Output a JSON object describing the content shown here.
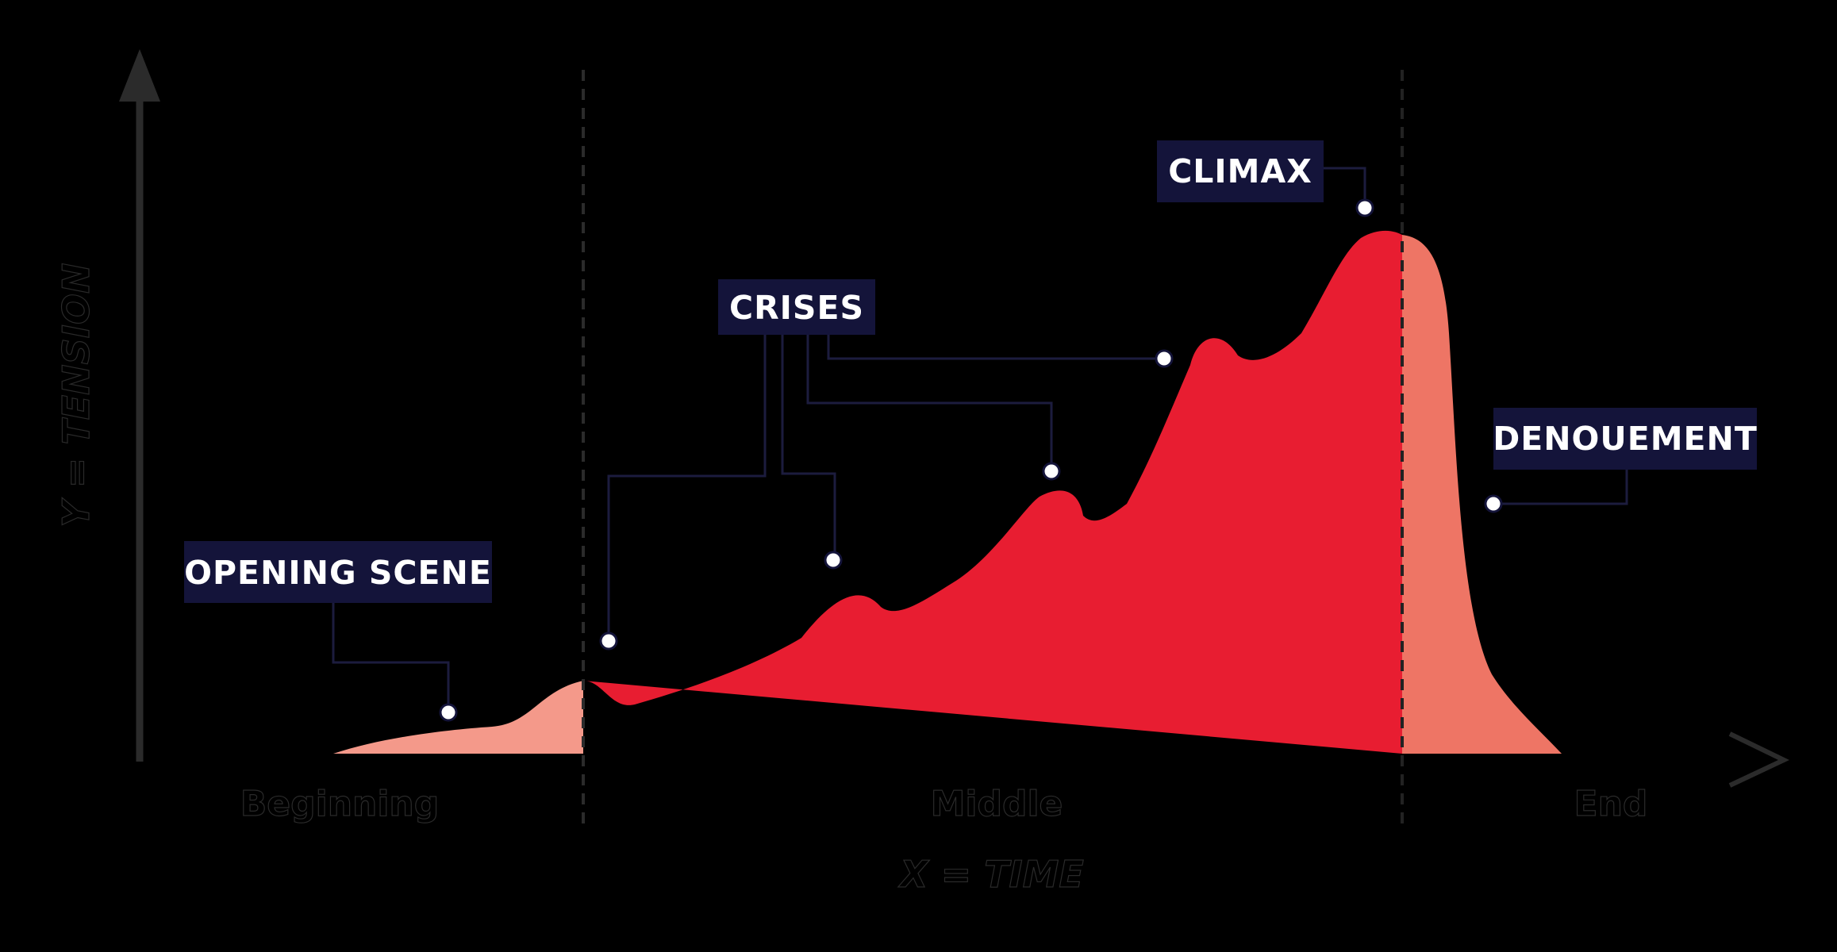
{
  "diagram": {
    "x_axis_label": "X = TIME",
    "y_axis_label": "Y = TENSION",
    "sections": {
      "beginning": "Beginning",
      "middle": "Middle",
      "end": "End"
    },
    "callouts": {
      "opening_scene": "OPENING SCENE",
      "crises": "CRISES",
      "climax": "CLIMAX",
      "denouement": "DENOUEMENT"
    },
    "colors": {
      "background": "#000000",
      "beginning_fill": "#f4998a",
      "middle_fill": "#e81d31",
      "end_fill": "#ee7565",
      "label_box": "#14143a",
      "axis": "#2b2b2b",
      "leader_line": "#1c1c3e"
    }
  }
}
